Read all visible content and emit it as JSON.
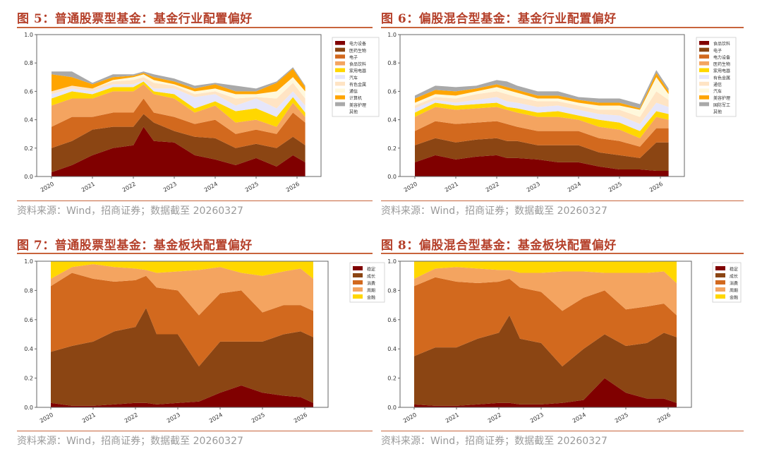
{
  "panels": [
    {
      "title": "图 5：普通股票型基金：基金行业配置偏好",
      "source": "资料来源：Wind，招商证券；数据截至 20260327"
    },
    {
      "title": "图 6：偏股混合型基金：基金行业配置偏好",
      "source": "资料来源：Wind，招商证券；数据截至 20260327"
    },
    {
      "title": "图 7：普通股票型基金：基金板块配置偏好",
      "source": "资料来源：Wind，招商证券；数据截至 20260327"
    },
    {
      "title": "图 8：偏股混合型基金：基金板块配置偏好",
      "source": "资料来源：Wind，招商证券；数据截至 20260327"
    }
  ],
  "chart_data": [
    {
      "type": "area",
      "stacked": true,
      "ylim": [
        0,
        1.0
      ],
      "yticks": [
        "0.0",
        "0.2",
        "0.4",
        "0.6",
        "0.8",
        "1.0"
      ],
      "xticks": [
        "2020",
        "2021",
        "2022",
        "2023",
        "2024",
        "2025",
        "2026"
      ],
      "legend": "right",
      "x": [
        2020.0,
        2020.5,
        2021.0,
        2021.5,
        2022.0,
        2022.25,
        2022.5,
        2023.0,
        2023.5,
        2024.0,
        2024.5,
        2025.0,
        2025.5,
        2025.9,
        2026.2
      ],
      "series": [
        {
          "name": "电力设备",
          "color": "#800000",
          "values": [
            0.03,
            0.08,
            0.15,
            0.2,
            0.22,
            0.35,
            0.25,
            0.24,
            0.15,
            0.12,
            0.08,
            0.13,
            0.07,
            0.15,
            0.1
          ]
        },
        {
          "name": "医药生物",
          "color": "#8b4513",
          "values": [
            0.17,
            0.17,
            0.18,
            0.15,
            0.13,
            0.09,
            0.13,
            0.08,
            0.13,
            0.15,
            0.12,
            0.1,
            0.13,
            0.13,
            0.12
          ]
        },
        {
          "name": "电子",
          "color": "#d2691e",
          "values": [
            0.15,
            0.17,
            0.09,
            0.1,
            0.1,
            0.11,
            0.07,
            0.1,
            0.09,
            0.13,
            0.1,
            0.1,
            0.1,
            0.17,
            0.16
          ]
        },
        {
          "name": "食品饮料",
          "color": "#f4a460",
          "values": [
            0.15,
            0.13,
            0.13,
            0.15,
            0.15,
            0.1,
            0.13,
            0.13,
            0.08,
            0.1,
            0.08,
            0.07,
            0.05,
            0.07,
            0.04
          ]
        },
        {
          "name": "家用电器",
          "color": "#ffd700",
          "values": [
            0.05,
            0.05,
            0.03,
            0.03,
            0.03,
            0.02,
            0.02,
            0.03,
            0.03,
            0.03,
            0.08,
            0.08,
            0.07,
            0.04,
            0.03
          ]
        },
        {
          "name": "汽车",
          "color": "#e6e6fa",
          "values": [
            0.03,
            0.02,
            0.02,
            0.02,
            0.02,
            0.01,
            0.02,
            0.04,
            0.08,
            0.05,
            0.04,
            0.07,
            0.06,
            0.04,
            0.05
          ]
        },
        {
          "name": "有色金属",
          "color": "#ffe4c4",
          "values": [
            0.02,
            0.02,
            0.02,
            0.02,
            0.03,
            0.02,
            0.04,
            0.02,
            0.02,
            0.02,
            0.05,
            0.01,
            0.07,
            0.06,
            0.05
          ]
        },
        {
          "name": "通信",
          "color": "#fff8dc",
          "values": [
            0,
            0,
            0,
            0.01,
            0.02,
            0.02,
            0.02,
            0.01,
            0.02,
            0.02,
            0.03,
            0.02,
            0.05,
            0.04,
            0.05
          ]
        },
        {
          "name": "计算机",
          "color": "#ffa500",
          "values": [
            0.12,
            0.06,
            0.03,
            0.02,
            0.01,
            0.01,
            0.02,
            0.02,
            0.02,
            0.03,
            0.02,
            0.02,
            0.06,
            0.06,
            0.03
          ]
        },
        {
          "name": "美容护理",
          "color": "#a9a9a9",
          "values": [
            0.02,
            0.04,
            0.01,
            0.02,
            0.01,
            0.01,
            0.02,
            0.02,
            0.02,
            0.01,
            0.04,
            0.02,
            0.01,
            0.01,
            0.01
          ]
        },
        {
          "name": "其他",
          "color": "#ffffff",
          "values": [
            0,
            0,
            0,
            0,
            0,
            0,
            0,
            0,
            0,
            0,
            0,
            0,
            0,
            0,
            0
          ]
        }
      ]
    },
    {
      "type": "area",
      "stacked": true,
      "ylim": [
        0,
        1.0
      ],
      "yticks": [
        "0.0",
        "0.2",
        "0.4",
        "0.6",
        "0.8",
        "1.0"
      ],
      "xticks": [
        "2020",
        "2021",
        "2022",
        "2023",
        "2024",
        "2025",
        "2026"
      ],
      "legend": "right",
      "x": [
        2020.0,
        2020.5,
        2021.0,
        2021.5,
        2022.0,
        2022.25,
        2022.5,
        2023.0,
        2023.5,
        2024.0,
        2024.5,
        2025.0,
        2025.5,
        2025.9,
        2026.2
      ],
      "series": [
        {
          "name": "食品饮料",
          "color": "#800000",
          "values": [
            0.1,
            0.15,
            0.12,
            0.14,
            0.15,
            0.13,
            0.13,
            0.12,
            0.1,
            0.1,
            0.07,
            0.05,
            0.05,
            0.04,
            0.04
          ]
        },
        {
          "name": "电子",
          "color": "#8b4513",
          "values": [
            0.12,
            0.12,
            0.12,
            0.12,
            0.12,
            0.12,
            0.12,
            0.1,
            0.12,
            0.12,
            0.1,
            0.1,
            0.08,
            0.2,
            0.2
          ]
        },
        {
          "name": "电力设备",
          "color": "#d2691e",
          "values": [
            0.1,
            0.12,
            0.13,
            0.12,
            0.12,
            0.12,
            0.1,
            0.1,
            0.1,
            0.1,
            0.1,
            0.1,
            0.08,
            0.1,
            0.1
          ]
        },
        {
          "name": "医药生物",
          "color": "#f4a460",
          "values": [
            0.1,
            0.1,
            0.1,
            0.1,
            0.1,
            0.1,
            0.1,
            0.1,
            0.1,
            0.08,
            0.08,
            0.08,
            0.06,
            0.08,
            0.06
          ]
        },
        {
          "name": "家用电器",
          "color": "#ffd700",
          "values": [
            0.03,
            0.03,
            0.03,
            0.03,
            0.03,
            0.02,
            0.03,
            0.03,
            0.04,
            0.03,
            0.05,
            0.05,
            0.05,
            0.04,
            0.04
          ]
        },
        {
          "name": "有色金属",
          "color": "#e6e6fa",
          "values": [
            0.03,
            0.02,
            0.02,
            0.03,
            0.04,
            0.04,
            0.04,
            0.04,
            0.04,
            0.04,
            0.04,
            0.05,
            0.05,
            0.06,
            0.05
          ]
        },
        {
          "name": "通信",
          "color": "#ffe4c4",
          "values": [
            0.02,
            0.02,
            0.03,
            0.04,
            0.04,
            0.05,
            0.04,
            0.04,
            0.03,
            0.03,
            0.03,
            0.04,
            0.05,
            0.08,
            0.05
          ]
        },
        {
          "name": "汽车",
          "color": "#fff8dc",
          "values": [
            0.02,
            0.02,
            0.02,
            0.02,
            0.03,
            0.03,
            0.03,
            0.02,
            0.02,
            0.02,
            0.03,
            0.03,
            0.05,
            0.1,
            0.04
          ]
        },
        {
          "name": "美容护理",
          "color": "#ffa500",
          "values": [
            0.03,
            0.03,
            0.03,
            0.02,
            0.02,
            0.02,
            0.02,
            0.02,
            0.02,
            0.02,
            0.02,
            0.02,
            0.01,
            0.03,
            0.02
          ]
        },
        {
          "name": "国防军工",
          "color": "#a9a9a9",
          "values": [
            0.02,
            0.03,
            0.03,
            0.02,
            0.03,
            0.04,
            0.03,
            0.03,
            0.03,
            0.02,
            0.03,
            0.03,
            0.03,
            0.02,
            0.02
          ]
        },
        {
          "name": "其他",
          "color": "#ffffff",
          "values": [
            0,
            0,
            0,
            0,
            0,
            0,
            0,
            0,
            0,
            0,
            0,
            0,
            0,
            0,
            0
          ]
        }
      ]
    },
    {
      "type": "area",
      "stacked": true,
      "ylim": [
        0,
        1.0
      ],
      "yticks": [
        "0.0",
        "0.2",
        "0.4",
        "0.6",
        "0.8",
        "1.0"
      ],
      "xticks": [
        "2020",
        "2021",
        "2022",
        "2023",
        "2024",
        "2025",
        "2026"
      ],
      "legend": "right",
      "x": [
        2020.0,
        2020.5,
        2021.0,
        2021.5,
        2022.0,
        2022.25,
        2022.5,
        2023.0,
        2023.5,
        2024.0,
        2024.5,
        2025.0,
        2025.5,
        2025.9,
        2026.2
      ],
      "series": [
        {
          "name": "稳定",
          "color": "#800000",
          "values": [
            0.03,
            0.01,
            0.01,
            0.02,
            0.03,
            0.03,
            0.02,
            0.03,
            0.04,
            0.1,
            0.15,
            0.1,
            0.08,
            0.07,
            0.03
          ]
        },
        {
          "name": "成长",
          "color": "#8b4513",
          "values": [
            0.35,
            0.41,
            0.44,
            0.5,
            0.52,
            0.65,
            0.48,
            0.47,
            0.24,
            0.35,
            0.3,
            0.35,
            0.42,
            0.45,
            0.45
          ]
        },
        {
          "name": "消费",
          "color": "#d2691e",
          "values": [
            0.45,
            0.5,
            0.43,
            0.34,
            0.32,
            0.22,
            0.32,
            0.3,
            0.35,
            0.33,
            0.35,
            0.2,
            0.2,
            0.18,
            0.18
          ]
        },
        {
          "name": "周期",
          "color": "#f4a460",
          "values": [
            0.05,
            0.04,
            0.1,
            0.1,
            0.08,
            0.04,
            0.1,
            0.13,
            0.31,
            0.18,
            0.12,
            0.25,
            0.23,
            0.25,
            0.22
          ]
        },
        {
          "name": "金融",
          "color": "#ffd700",
          "values": [
            0.12,
            0.04,
            0.02,
            0.04,
            0.05,
            0.06,
            0.08,
            0.07,
            0.06,
            0.04,
            0.08,
            0.1,
            0.07,
            0.05,
            0.12
          ]
        }
      ]
    },
    {
      "type": "area",
      "stacked": true,
      "ylim": [
        0,
        1.0
      ],
      "yticks": [
        "0.0",
        "0.2",
        "0.4",
        "0.6",
        "0.8",
        "1.0"
      ],
      "xticks": [
        "2020",
        "2021",
        "2022",
        "2023",
        "2024",
        "2025",
        "2026"
      ],
      "legend": "right",
      "x": [
        2020.0,
        2020.5,
        2021.0,
        2021.5,
        2022.0,
        2022.25,
        2022.5,
        2023.0,
        2023.5,
        2024.0,
        2024.5,
        2025.0,
        2025.5,
        2025.9,
        2026.2
      ],
      "series": [
        {
          "name": "稳定",
          "color": "#800000",
          "values": [
            0.02,
            0.01,
            0.01,
            0.02,
            0.03,
            0.03,
            0.02,
            0.02,
            0.03,
            0.05,
            0.2,
            0.1,
            0.06,
            0.06,
            0.03
          ]
        },
        {
          "name": "成长",
          "color": "#8b4513",
          "values": [
            0.33,
            0.4,
            0.4,
            0.45,
            0.48,
            0.6,
            0.45,
            0.42,
            0.25,
            0.35,
            0.3,
            0.32,
            0.38,
            0.45,
            0.45
          ]
        },
        {
          "name": "消费",
          "color": "#d2691e",
          "values": [
            0.48,
            0.48,
            0.45,
            0.38,
            0.35,
            0.25,
            0.35,
            0.35,
            0.38,
            0.35,
            0.3,
            0.25,
            0.25,
            0.2,
            0.15
          ]
        },
        {
          "name": "周期",
          "color": "#f4a460",
          "values": [
            0.05,
            0.06,
            0.1,
            0.1,
            0.08,
            0.06,
            0.1,
            0.13,
            0.27,
            0.18,
            0.12,
            0.25,
            0.23,
            0.22,
            0.22
          ]
        },
        {
          "name": "金融",
          "color": "#ffd700",
          "values": [
            0.12,
            0.05,
            0.04,
            0.05,
            0.06,
            0.06,
            0.08,
            0.08,
            0.07,
            0.07,
            0.08,
            0.08,
            0.08,
            0.07,
            0.15
          ]
        }
      ]
    }
  ]
}
